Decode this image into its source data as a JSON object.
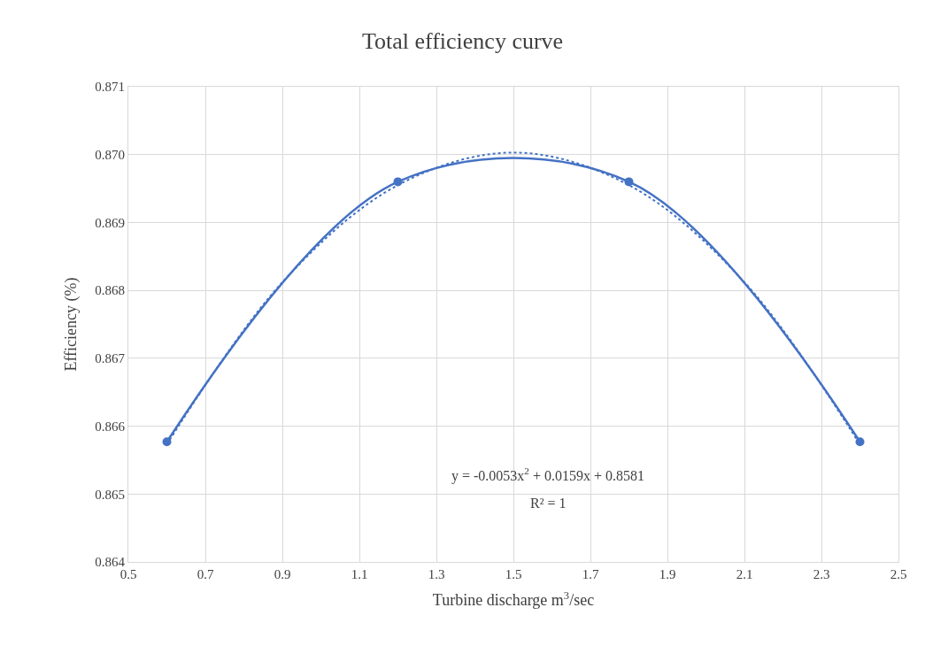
{
  "chart_data": {
    "type": "line",
    "title": "Total efficiency curve",
    "xlabel": "Turbine discharge m$^{3}$/sec",
    "ylabel": "Efficiency (%)",
    "series": [
      {
        "color": "#4472c4",
        "x": [
          0.6,
          1.2,
          1.8,
          2.4
        ],
        "values": [
          0.86577,
          0.8696,
          0.8696,
          0.86577
        ],
        "marker": "circle",
        "line_style": "solid"
      },
      {
        "color": "#4472c4",
        "x": [
          0.6,
          0.9,
          1.2,
          1.5,
          1.8,
          2.1,
          2.4
        ],
        "values": [
          0.86573,
          0.86812,
          0.86955,
          0.87003,
          0.86955,
          0.86812,
          0.86573
        ],
        "marker": "none",
        "line_style": "dotted"
      }
    ],
    "xlim": [
      0.5,
      2.5
    ],
    "xticks": [
      0.5,
      0.7,
      0.9,
      1.1,
      1.3,
      1.5,
      1.7,
      1.9,
      2.1,
      2.3,
      2.5
    ],
    "ylim": [
      0.864,
      0.871
    ],
    "yticks": [
      {
        "value": 0.864,
        "label": "0.864"
      },
      {
        "value": 0.865,
        "label": "0.865"
      },
      {
        "value": 0.866,
        "label": "0.866"
      },
      {
        "value": 0.867,
        "label": "0.867"
      },
      {
        "value": 0.868,
        "label": "0.868"
      },
      {
        "value": 0.869,
        "label": "0.869"
      },
      {
        "value": 0.87,
        "label": "0.870"
      },
      {
        "value": 0.871,
        "label": "0.871"
      }
    ],
    "grid": true,
    "annotations": [
      "y = -0.0053x$^{2}$ + 0.0159x + 0.8581",
      "R² = 1"
    ]
  }
}
